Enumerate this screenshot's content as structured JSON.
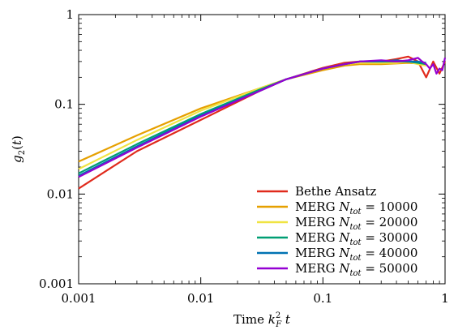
{
  "chart_data": {
    "type": "line",
    "xlabel": "Time k_F^2 t",
    "ylabel": "g_2(t)",
    "x_scale": "log",
    "y_scale": "log",
    "xlim": [
      0.001,
      1
    ],
    "ylim": [
      0.001,
      1
    ],
    "x_ticks": [
      0.001,
      0.01,
      0.1,
      1
    ],
    "x_tick_labels": [
      "0.001",
      "0.01",
      "0.1",
      "1"
    ],
    "y_ticks": [
      0.001,
      0.01,
      0.1,
      1
    ],
    "y_tick_labels": [
      "0.001",
      "0.01",
      "0.1",
      "1"
    ],
    "grid": false,
    "legend_position": "bottom-right",
    "series": [
      {
        "name": "Bethe Ansatz",
        "color": "#e02a1c",
        "x": [
          0.001,
          0.003,
          0.01,
          0.03,
          0.05,
          0.1,
          0.15,
          0.2,
          0.3,
          0.4,
          0.5,
          0.6,
          0.7,
          0.8,
          0.9,
          1.0
        ],
        "y": [
          0.0115,
          0.03,
          0.067,
          0.14,
          0.19,
          0.255,
          0.29,
          0.3,
          0.3,
          0.32,
          0.34,
          0.3,
          0.2,
          0.3,
          0.22,
          0.3
        ]
      },
      {
        "name": "MERG N_tot = 10000",
        "color": "#e6a000",
        "x": [
          0.001,
          0.003,
          0.01,
          0.03,
          0.05,
          0.1,
          0.15,
          0.2,
          0.3,
          0.4,
          0.5,
          0.6,
          0.7
        ],
        "y": [
          0.023,
          0.045,
          0.09,
          0.15,
          0.19,
          0.24,
          0.27,
          0.28,
          0.28,
          0.285,
          0.29,
          0.285,
          0.28
        ]
      },
      {
        "name": "MERG N_tot = 20000",
        "color": "#f0e442",
        "x": [
          0.001,
          0.003,
          0.01,
          0.03,
          0.05,
          0.1,
          0.15,
          0.2,
          0.3,
          0.4,
          0.5,
          0.6,
          0.7
        ],
        "y": [
          0.019,
          0.04,
          0.085,
          0.15,
          0.19,
          0.25,
          0.28,
          0.29,
          0.29,
          0.29,
          0.3,
          0.28,
          0.27
        ]
      },
      {
        "name": "MERG N_tot = 30000",
        "color": "#009e73",
        "x": [
          0.001,
          0.003,
          0.01,
          0.03,
          0.05,
          0.1,
          0.15,
          0.2,
          0.3,
          0.4,
          0.5,
          0.6,
          0.7
        ],
        "y": [
          0.017,
          0.036,
          0.078,
          0.145,
          0.19,
          0.25,
          0.28,
          0.3,
          0.3,
          0.3,
          0.3,
          0.29,
          0.28
        ]
      },
      {
        "name": "MERG N_tot = 40000",
        "color": "#0072b2",
        "x": [
          0.001,
          0.003,
          0.01,
          0.03,
          0.05,
          0.1,
          0.15,
          0.2,
          0.3,
          0.4,
          0.5,
          0.6,
          0.7
        ],
        "y": [
          0.016,
          0.034,
          0.075,
          0.14,
          0.19,
          0.25,
          0.28,
          0.3,
          0.3,
          0.31,
          0.3,
          0.3,
          0.29
        ]
      },
      {
        "name": "MERG N_tot = 50000",
        "color": "#9400d3",
        "x": [
          0.001,
          0.003,
          0.01,
          0.03,
          0.05,
          0.1,
          0.15,
          0.2,
          0.3,
          0.4,
          0.5,
          0.6,
          0.65,
          0.7,
          0.75,
          0.8,
          0.85,
          0.9,
          0.95,
          1.0
        ],
        "y": [
          0.0155,
          0.033,
          0.073,
          0.14,
          0.19,
          0.25,
          0.28,
          0.3,
          0.31,
          0.3,
          0.31,
          0.33,
          0.3,
          0.28,
          0.25,
          0.28,
          0.22,
          0.25,
          0.24,
          0.33
        ]
      }
    ]
  }
}
